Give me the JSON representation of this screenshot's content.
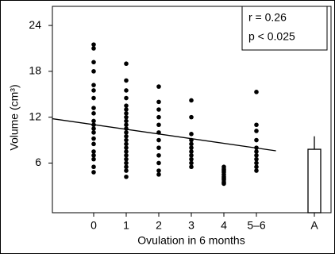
{
  "chart_data": {
    "type": "scatter",
    "y_label": "Volume (cm³)",
    "x_label": "Ovulation in 6 months",
    "annotations": [
      "r = 0.26",
      "p < 0.025"
    ],
    "categories": [
      "0",
      "1",
      "2",
      "3",
      "4",
      "5–6",
      "A"
    ],
    "strips": [
      [
        21.5,
        21,
        19.2,
        18,
        16.2,
        15.5,
        14.5,
        13.2,
        12.5,
        11.5,
        11,
        10.5,
        10,
        9.2,
        8.5,
        7.5,
        7,
        6.5,
        5.5,
        4.8
      ],
      [
        19,
        16.8,
        15.5,
        14.5,
        13.5,
        13,
        12.5,
        12,
        11.5,
        11,
        10.5,
        10,
        9.5,
        9,
        8.5,
        8,
        7.5,
        7,
        6.5,
        6,
        5.5,
        5,
        4.2
      ],
      [
        16,
        14,
        13,
        12,
        11,
        10,
        9,
        8,
        7,
        6,
        5,
        4.5
      ],
      [
        14.2,
        12,
        9.8,
        9,
        8.5,
        8,
        7.5,
        7,
        6.5,
        6,
        5.5
      ],
      [
        5.5,
        5.2,
        5,
        4.8,
        4.5,
        4.2,
        4,
        3.8,
        3.5,
        3.3
      ],
      [
        15.3,
        11,
        10.2,
        9,
        8,
        7.5,
        7,
        6.5,
        6,
        5.5,
        5
      ]
    ],
    "bar": {
      "value": 7.8,
      "error": 1.7
    },
    "trend": {
      "x": [
        -1.27,
        5.6
      ],
      "y": [
        11.8,
        7.6
      ]
    },
    "color": "#000000",
    "ylim": [
      -0.5,
      26.5
    ],
    "yticks": [
      6,
      12,
      18,
      24
    ]
  }
}
